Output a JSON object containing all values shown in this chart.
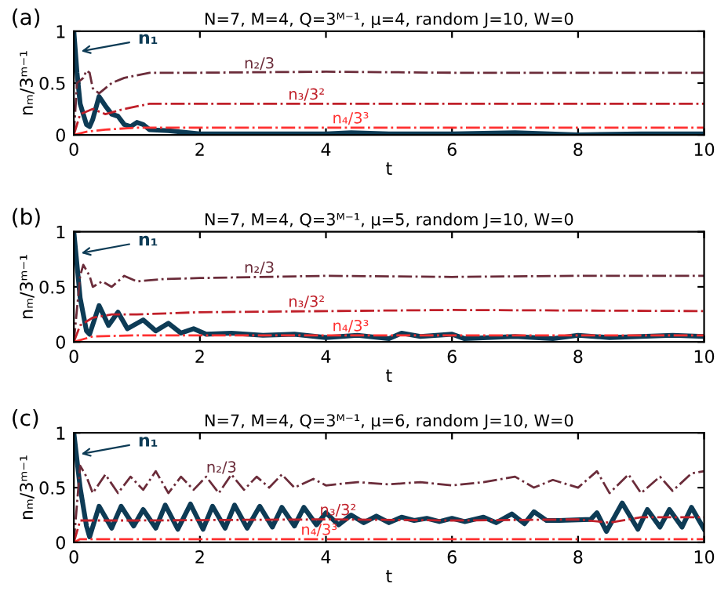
{
  "chart_data": [
    {
      "type": "line",
      "title": "N=7, M=4, Q=3ᴹ⁻¹, μ=4, random J=10, W=0",
      "xlabel": "t",
      "ylabel": "nₘ/3ᵐ⁻¹",
      "xlim": [
        0,
        10
      ],
      "ylim": [
        0,
        1
      ],
      "xticks": [
        0,
        2,
        4,
        6,
        8,
        10
      ],
      "yticks": [
        0,
        0.5,
        1
      ],
      "grid": false,
      "legend": false,
      "annotations": [
        "(a)",
        {
          "text": "n₁",
          "x": 0.05,
          "y": 0.8
        },
        {
          "text": "n₂/3",
          "x": 2.7,
          "y": 0.6
        },
        {
          "text": "n₃/3²",
          "x": 3.4,
          "y": 0.3
        },
        {
          "text": "n₄/3³",
          "x": 4.1,
          "y": 0.07
        }
      ],
      "series": [
        {
          "color": "#0d3b55",
          "line_style": "solid",
          "x": [
            0,
            0.05,
            0.1,
            0.2,
            0.25,
            0.3,
            0.4,
            0.5,
            0.6,
            0.7,
            0.8,
            0.9,
            1.0,
            1.1,
            1.2,
            1.5,
            2,
            3,
            4,
            4.4,
            5,
            6,
            7,
            8,
            9,
            10
          ],
          "values": [
            1,
            0.6,
            0.3,
            0.1,
            0.08,
            0.15,
            0.37,
            0.28,
            0.2,
            0.18,
            0.1,
            0.08,
            0.12,
            0.1,
            0.05,
            0.04,
            0.01,
            0.01,
            0.01,
            0.02,
            0.01,
            0.01,
            0.02,
            0,
            0.01,
            0.01
          ]
        },
        {
          "color": "#6b2c3a",
          "line_style": "dashdot",
          "x": [
            0,
            0.05,
            0.15,
            0.2,
            0.25,
            0.3,
            0.4,
            0.6,
            0.8,
            1.2,
            2,
            4,
            6,
            8,
            10
          ],
          "values": [
            0,
            0.5,
            0.55,
            0.62,
            0.6,
            0.45,
            0.4,
            0.5,
            0.55,
            0.6,
            0.6,
            0.61,
            0.6,
            0.6,
            0.6
          ]
        },
        {
          "color": "#c0202a",
          "line_style": "dashdot",
          "x": [
            0,
            0.1,
            0.3,
            0.5,
            0.8,
            1.2,
            2,
            10
          ],
          "values": [
            0,
            0.2,
            0.25,
            0.2,
            0.25,
            0.3,
            0.3,
            0.3
          ]
        },
        {
          "color": "#ff3030",
          "line_style": "dashdot",
          "x": [
            0,
            0.2,
            0.5,
            1,
            2,
            10
          ],
          "values": [
            0,
            0.03,
            0.05,
            0.07,
            0.07,
            0.07
          ]
        }
      ]
    },
    {
      "type": "line",
      "title": "N=7, M=4, Q=3ᴹ⁻¹, μ=5, random J=10, W=0",
      "xlabel": "t",
      "ylabel": "nₘ/3ᵐ⁻¹",
      "xlim": [
        0,
        10
      ],
      "ylim": [
        0,
        1
      ],
      "xticks": [
        0,
        2,
        4,
        6,
        8,
        10
      ],
      "yticks": [
        0,
        0.5,
        1
      ],
      "grid": false,
      "legend": false,
      "annotations": [
        "(b)",
        {
          "text": "n₁",
          "x": 0.05,
          "y": 0.8
        },
        {
          "text": "n₂/3",
          "x": 2.7,
          "y": 0.59
        },
        {
          "text": "n₃/3²",
          "x": 3.4,
          "y": 0.28
        },
        {
          "text": "n₄/3³",
          "x": 4.1,
          "y": 0.06
        }
      ],
      "series": [
        {
          "color": "#0d3b55",
          "line_style": "solid",
          "x": [
            0,
            0.1,
            0.2,
            0.25,
            0.4,
            0.55,
            0.7,
            0.85,
            1.1,
            1.3,
            1.5,
            1.7,
            1.9,
            2.1,
            2.5,
            3,
            3.5,
            4,
            4.5,
            5,
            5.2,
            5.5,
            6,
            6.2,
            7,
            7.6,
            8,
            8.5,
            9,
            9.5,
            10
          ],
          "values": [
            1,
            0.4,
            0.1,
            0.07,
            0.33,
            0.15,
            0.27,
            0.12,
            0.2,
            0.1,
            0.17,
            0.08,
            0.12,
            0.07,
            0.08,
            0.06,
            0.07,
            0.04,
            0.06,
            0.03,
            0.08,
            0.05,
            0.07,
            0.03,
            0.05,
            0.03,
            0.06,
            0.04,
            0.05,
            0.06,
            0.05
          ]
        },
        {
          "color": "#6b2c3a",
          "line_style": "dashdot",
          "x": [
            0,
            0.1,
            0.15,
            0.25,
            0.3,
            0.45,
            0.6,
            0.8,
            1,
            1.4,
            2,
            4,
            6,
            8,
            10
          ],
          "values": [
            0,
            0.6,
            0.7,
            0.6,
            0.5,
            0.55,
            0.5,
            0.6,
            0.55,
            0.57,
            0.58,
            0.6,
            0.59,
            0.6,
            0.6
          ]
        },
        {
          "color": "#c0202a",
          "line_style": "dashdot",
          "x": [
            0,
            0.1,
            0.3,
            0.6,
            1,
            2,
            6,
            10
          ],
          "values": [
            0,
            0.15,
            0.22,
            0.25,
            0.25,
            0.27,
            0.29,
            0.28
          ]
        },
        {
          "color": "#ff3030",
          "line_style": "dashdot",
          "x": [
            0,
            0.3,
            1,
            10
          ],
          "values": [
            0,
            0.05,
            0.06,
            0.06
          ]
        }
      ]
    },
    {
      "type": "line",
      "title": "N=7, M=4, Q=3ᴹ⁻¹, μ=6, random J=10, W=0",
      "xlabel": "t",
      "ylabel": "nₘ/3ᵐ⁻¹",
      "xlim": [
        0,
        10
      ],
      "ylim": [
        0,
        1
      ],
      "xticks": [
        0,
        2,
        4,
        6,
        8,
        10
      ],
      "yticks": [
        0,
        0.5,
        1
      ],
      "grid": false,
      "legend": false,
      "annotations": [
        "(c)",
        {
          "text": "n₁",
          "x": 0.05,
          "y": 0.8
        },
        {
          "text": "n₂/3",
          "x": 2.1,
          "y": 0.6
        },
        {
          "text": "n₃/3²",
          "x": 3.9,
          "y": 0.21
        },
        {
          "text": "n₄/3³",
          "x": 3.6,
          "y": 0.03
        }
      ],
      "series": [
        {
          "color": "#0d3b55",
          "line_style": "solid",
          "x": [
            0,
            0.1,
            0.2,
            0.25,
            0.4,
            0.6,
            0.75,
            0.95,
            1.1,
            1.3,
            1.45,
            1.65,
            1.85,
            2.05,
            2.2,
            2.4,
            2.55,
            2.75,
            2.95,
            3.15,
            3.3,
            3.5,
            3.65,
            3.85,
            4.0,
            4.2,
            4.4,
            4.6,
            4.8,
            5.0,
            5.2,
            5.4,
            5.6,
            5.8,
            6.0,
            6.2,
            6.5,
            6.7,
            6.95,
            7.15,
            7.3,
            7.5,
            7.7,
            8.2,
            8.3,
            8.45,
            8.7,
            8.95,
            9.1,
            9.3,
            9.45,
            9.65,
            9.8,
            10
          ],
          "values": [
            1,
            0.5,
            0.15,
            0.05,
            0.33,
            0.13,
            0.33,
            0.15,
            0.3,
            0.13,
            0.34,
            0.12,
            0.35,
            0.12,
            0.33,
            0.13,
            0.34,
            0.13,
            0.33,
            0.14,
            0.32,
            0.15,
            0.32,
            0.16,
            0.27,
            0.16,
            0.25,
            0.18,
            0.24,
            0.18,
            0.23,
            0.2,
            0.22,
            0.19,
            0.22,
            0.19,
            0.23,
            0.18,
            0.26,
            0.17,
            0.28,
            0.2,
            0.2,
            0.21,
            0.27,
            0.1,
            0.36,
            0.12,
            0.3,
            0.14,
            0.3,
            0.14,
            0.32,
            0.12
          ]
        },
        {
          "color": "#6b2c3a",
          "line_style": "dashdot",
          "x": [
            0,
            0.1,
            0.2,
            0.3,
            0.5,
            0.7,
            0.9,
            1.1,
            1.3,
            1.5,
            1.7,
            1.9,
            2.1,
            2.3,
            2.5,
            2.7,
            2.9,
            3.1,
            3.3,
            3.5,
            3.8,
            4.0,
            4.5,
            5,
            5.5,
            6,
            6.5,
            7,
            7.3,
            7.6,
            8,
            8.3,
            8.5,
            8.8,
            9,
            9.3,
            9.5,
            9.8,
            10
          ],
          "values": [
            0,
            0.7,
            0.6,
            0.45,
            0.62,
            0.45,
            0.6,
            0.48,
            0.65,
            0.45,
            0.6,
            0.48,
            0.6,
            0.45,
            0.62,
            0.48,
            0.6,
            0.5,
            0.62,
            0.5,
            0.58,
            0.52,
            0.55,
            0.53,
            0.55,
            0.52,
            0.55,
            0.6,
            0.5,
            0.57,
            0.5,
            0.65,
            0.45,
            0.62,
            0.45,
            0.6,
            0.47,
            0.63,
            0.65
          ]
        },
        {
          "color": "#c0202a",
          "line_style": "dashdot",
          "x": [
            0,
            0.1,
            1,
            4,
            6,
            8,
            8.5,
            9,
            10
          ],
          "values": [
            0,
            0.2,
            0.2,
            0.21,
            0.2,
            0.21,
            0.18,
            0.23,
            0.23
          ]
        },
        {
          "color": "#ff3030",
          "line_style": "dashdot",
          "x": [
            0,
            0.1,
            10
          ],
          "values": [
            0,
            0.03,
            0.03
          ]
        }
      ]
    }
  ]
}
